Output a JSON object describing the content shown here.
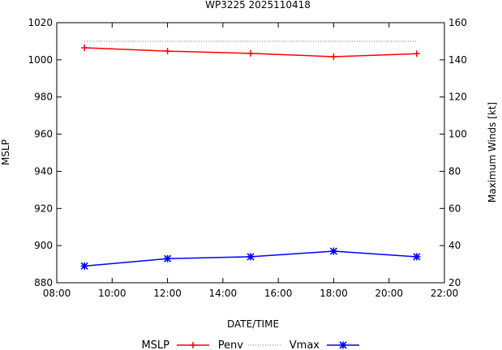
{
  "chart_data": {
    "type": "line",
    "title": "WP3225 2025110418",
    "xlabel": "DATE/TIME",
    "ylabel_left": "MSLP",
    "ylabel_right": "Maximum Winds [kt]",
    "x_ticks": [
      "08:00",
      "10:00",
      "12:00",
      "14:00",
      "16:00",
      "18:00",
      "20:00",
      "22:00"
    ],
    "x_tick_hours": [
      8,
      10,
      12,
      14,
      16,
      18,
      20,
      22
    ],
    "xlim_hours": [
      8,
      22
    ],
    "ylim_left": [
      880,
      1020
    ],
    "yticks_left": [
      880,
      900,
      920,
      940,
      960,
      980,
      1000,
      1020
    ],
    "ylim_right": [
      20,
      160
    ],
    "yticks_right": [
      20,
      40,
      60,
      80,
      100,
      120,
      140,
      160
    ],
    "x_hours": [
      9,
      12,
      15,
      18,
      21
    ],
    "series": [
      {
        "name": "MSLP",
        "axis": "left",
        "color": "#ff0000",
        "marker": "plus",
        "values": [
          1006.5,
          1004.7,
          1003.5,
          1001.7,
          1003.3
        ]
      },
      {
        "name": "Penv",
        "axis": "left",
        "color": "#555555",
        "marker": "none",
        "style": "dotted",
        "values": [
          1010,
          1010,
          1010,
          1010,
          1010
        ]
      },
      {
        "name": "Vmax",
        "axis": "right",
        "color": "#0000ff",
        "marker": "x",
        "values": [
          29,
          33,
          34,
          37,
          34
        ]
      }
    ],
    "legend": {
      "position": "bottom",
      "entries": [
        "MSLP",
        "Penv",
        "Vmax"
      ]
    }
  }
}
